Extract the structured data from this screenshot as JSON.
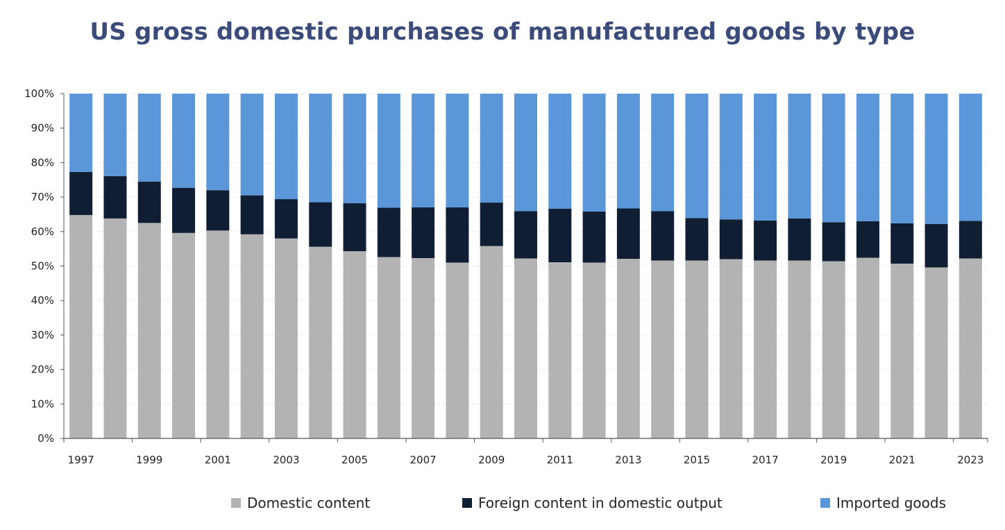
{
  "chart_data": {
    "type": "bar",
    "stacked": true,
    "title": "US gross domestic purchases of manufactured goods by type",
    "xlabel": "",
    "ylabel": "",
    "ylim": [
      0,
      100
    ],
    "y_ticks": [
      "0%",
      "10%",
      "20%",
      "30%",
      "40%",
      "50%",
      "60%",
      "70%",
      "80%",
      "90%",
      "100%"
    ],
    "x_tick_labels": [
      "1997",
      "1999",
      "2001",
      "2003",
      "2005",
      "2007",
      "2009",
      "2011",
      "2013",
      "2015",
      "2017",
      "2019",
      "2021",
      "2023"
    ],
    "categories": [
      "1997",
      "1998",
      "1999",
      "2000",
      "2001",
      "2002",
      "2003",
      "2004",
      "2005",
      "2006",
      "2007",
      "2008",
      "2009",
      "2010",
      "2011",
      "2012",
      "2013",
      "2014",
      "2015",
      "2016",
      "2017",
      "2018",
      "2019",
      "2020",
      "2021",
      "2022",
      "2023"
    ],
    "series": [
      {
        "name": "Domestic content",
        "color": "#b3b3b3",
        "values": [
          64.8,
          63.8,
          62.5,
          59.6,
          60.3,
          59.2,
          58.0,
          55.6,
          54.3,
          52.6,
          52.3,
          51.0,
          55.8,
          52.2,
          51.1,
          51.0,
          52.1,
          51.6,
          51.6,
          52.0,
          51.6,
          51.6,
          51.4,
          52.4,
          50.7,
          49.6,
          52.2
        ]
      },
      {
        "name": "Foreign content in domestic output",
        "color": "#0f1e33",
        "values": [
          12.5,
          12.3,
          12.0,
          13.1,
          11.7,
          11.3,
          11.4,
          12.9,
          13.9,
          14.3,
          14.7,
          16.0,
          12.6,
          13.7,
          15.5,
          14.8,
          14.6,
          14.3,
          12.3,
          11.5,
          11.6,
          12.2,
          11.3,
          10.6,
          11.7,
          12.6,
          10.9
        ]
      },
      {
        "name": "Imported goods",
        "color": "#5b97d8",
        "values": [
          22.7,
          23.9,
          25.5,
          27.3,
          28.0,
          29.5,
          30.6,
          31.5,
          31.8,
          33.1,
          33.0,
          33.0,
          31.6,
          34.1,
          33.4,
          34.2,
          33.3,
          34.1,
          36.1,
          36.5,
          36.8,
          36.2,
          37.3,
          37.0,
          37.6,
          37.8,
          36.9
        ]
      }
    ],
    "grid": true,
    "legend_position": "bottom"
  }
}
